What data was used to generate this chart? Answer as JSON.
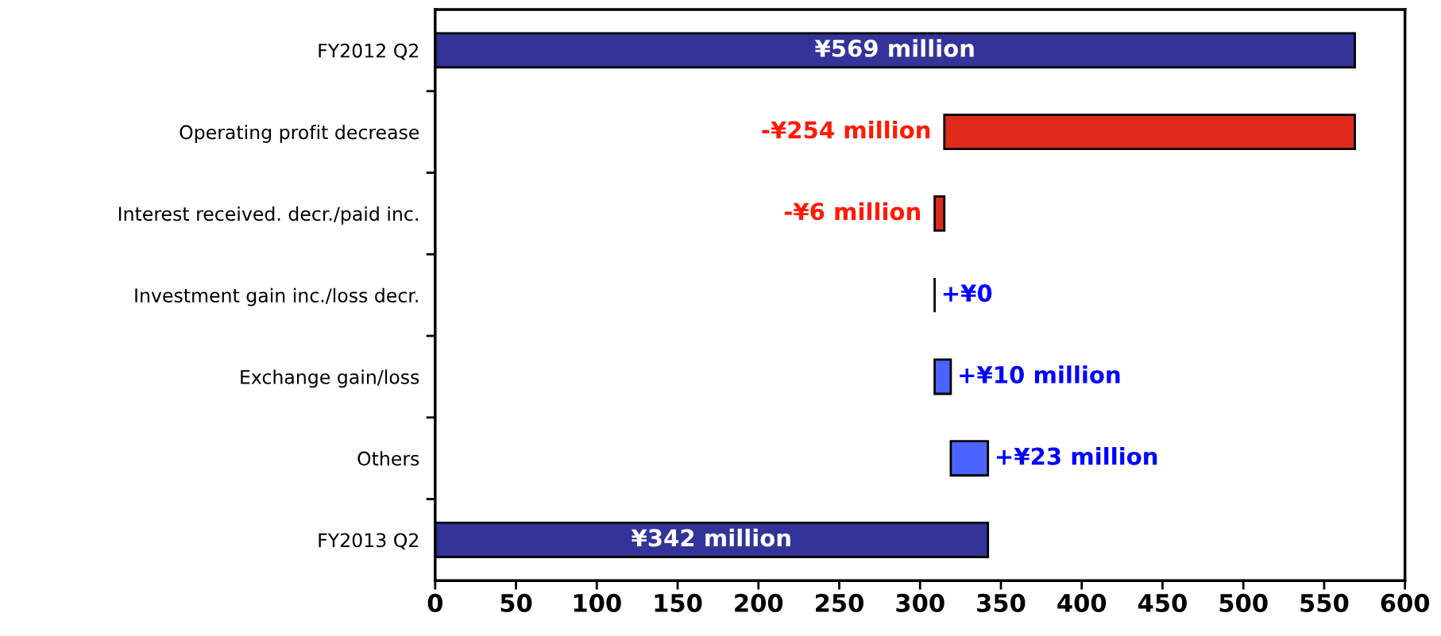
{
  "chart_data": {
    "type": "bar",
    "orientation": "horizontal",
    "categories": [
      "FY2012 Q2",
      "Operating profit decrease",
      "Interest received. decr./paid inc.",
      "Investment gain inc./loss decr.",
      "Exchange gain/loss",
      "Others",
      "FY2013 Q2"
    ],
    "values": [
      569,
      -254,
      -6,
      0,
      10,
      23,
      342
    ],
    "base": [
      0,
      569,
      315,
      309,
      309,
      319,
      0
    ],
    "colors": [
      "#333399",
      "#dd2a1b",
      "#dd2a1b",
      "#000000",
      "#4c64ff",
      "#4c64ff",
      "#333399"
    ],
    "value_labels": [
      "¥569 million",
      "-¥254 million",
      "-¥6 million",
      "+¥0",
      "+¥10 million",
      "+¥23 million",
      "¥342 million"
    ],
    "xlim": [
      0,
      600
    ],
    "xticks": [
      0,
      50,
      100,
      150,
      200,
      250,
      300,
      350,
      400,
      450,
      500,
      550,
      600
    ],
    "grid": false
  }
}
